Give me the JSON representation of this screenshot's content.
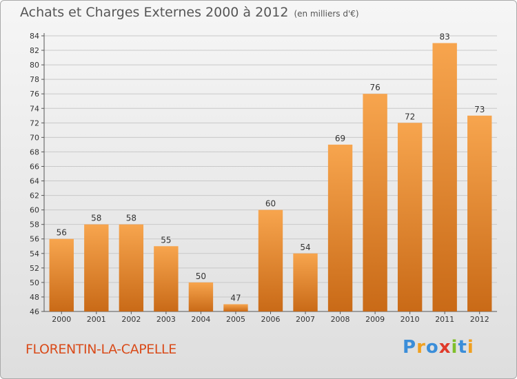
{
  "title": "Achats et Charges Externes 2000 à 2012",
  "unit_note": "(en milliers d'€)",
  "commune": "FLORENTIN-LA-CAPELLE",
  "logo_text": "Proxiti",
  "colors": {
    "bar_light": "#f7a54e",
    "bar_dark": "#c96a17",
    "grid": "#c8c8c8",
    "title_text": "#555555",
    "commune_text": "#d94b1a"
  },
  "chart_data": {
    "type": "bar",
    "categories": [
      "2000",
      "2001",
      "2002",
      "2003",
      "2004",
      "2005",
      "2006",
      "2007",
      "2008",
      "2009",
      "2010",
      "2011",
      "2012"
    ],
    "values": [
      56,
      58,
      58,
      55,
      50,
      47,
      60,
      54,
      69,
      76,
      72,
      83,
      73
    ],
    "title": "Achats et Charges Externes 2000 à 2012",
    "ylim": [
      46,
      84
    ],
    "yticks": [
      46,
      48,
      50,
      52,
      54,
      56,
      58,
      60,
      62,
      64,
      66,
      68,
      70,
      72,
      74,
      76,
      78,
      80,
      82,
      84
    ],
    "grid": true
  }
}
